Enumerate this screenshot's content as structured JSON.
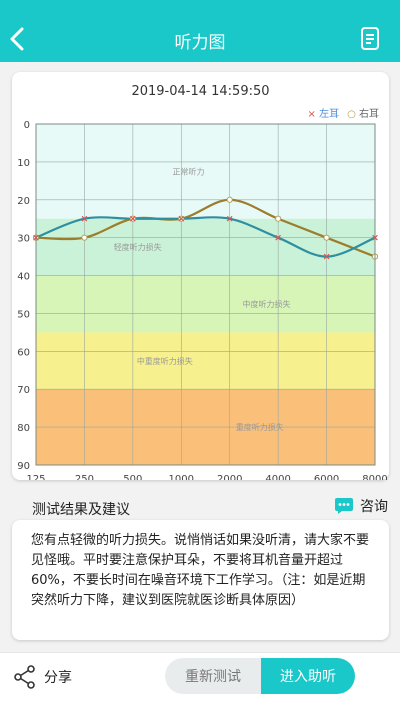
{
  "header": {
    "title": "听力图",
    "back_icon": "chevron-left-icon",
    "report_icon": "report-icon"
  },
  "card": {
    "timestamp": "2019-04-14 14:59:50"
  },
  "legend": {
    "left_marker": "×",
    "left_label": "左耳",
    "right_marker": "○",
    "right_label": "右耳"
  },
  "chart_data": {
    "type": "line",
    "x": [
      "125",
      "250",
      "500",
      "1000",
      "2000",
      "4000",
      "6000",
      "8000"
    ],
    "ylim": [
      0,
      90
    ],
    "y_ticks": [
      0,
      10,
      20,
      30,
      40,
      50,
      60,
      70,
      80,
      90
    ],
    "y_inverted": true,
    "grid": true,
    "zones": [
      {
        "label": "正常听力",
        "from": 0,
        "to": 25,
        "color": "#e8faf7"
      },
      {
        "label": "轻度听力损失",
        "from": 25,
        "to": 40,
        "color": "#c9f2d8"
      },
      {
        "label": "中度听力损失",
        "from": 40,
        "to": 55,
        "color": "#d6f5b6"
      },
      {
        "label": "中重度听力损失",
        "from": 55,
        "to": 70,
        "color": "#f7f08f"
      },
      {
        "label": "重度听力损失",
        "from": 70,
        "to": 90,
        "color": "#fac07a"
      }
    ],
    "series": [
      {
        "name": "左耳",
        "values": [
          30,
          25,
          25,
          25,
          25,
          30,
          35,
          30
        ],
        "color": "#2f8fa0"
      },
      {
        "name": "右耳",
        "values": [
          30,
          30,
          25,
          25,
          20,
          25,
          30,
          35
        ],
        "color": "#9c7d2c"
      }
    ]
  },
  "section": {
    "title": "测试结果及建议",
    "consult_label": "咨询",
    "consult_icon": "chat-icon"
  },
  "advice": {
    "text": "您有点轻微的听力损失。说悄悄话如果没听清，请大家不要见怪哦。平时要注意保护耳朵，不要将耳机音量开超过60%，不要长时间在噪音环境下工作学习。（注：如是近期突然听力下降，建议到医院就医诊断具体原因）"
  },
  "bottom": {
    "share_label": "分享",
    "share_icon": "share-icon",
    "retest_label": "重新测试",
    "enter_label": "进入助听"
  }
}
